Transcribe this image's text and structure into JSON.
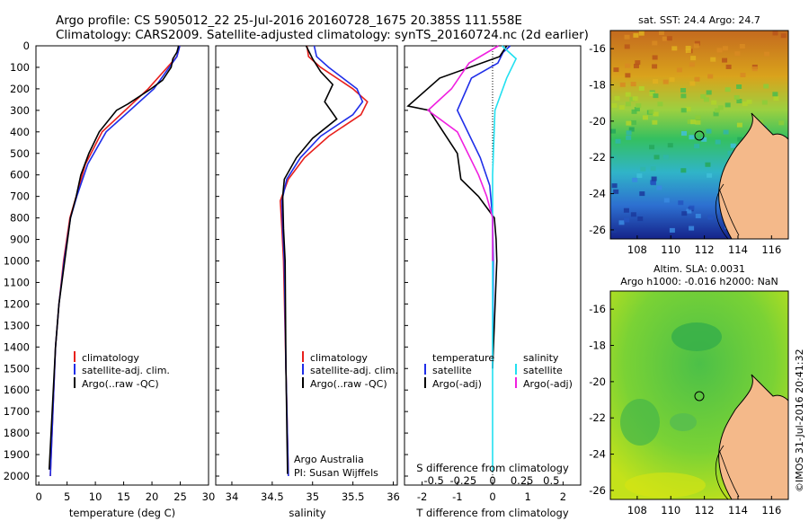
{
  "header": {
    "line1": "Argo profile: CS 5905012_22 25-Jul-2016 20160728_1675 20.385S 111.558E",
    "line2": "Climatology: CARS2009. Satellite-adjusted climatology: synTS_20160724.nc (2d earlier)"
  },
  "colors": {
    "climatology": "#e8201c",
    "satellite": "#1f2ee8",
    "argo": "#000000",
    "salinity_satellite": "#22e0f0",
    "salinity_argo": "#f020e0"
  },
  "depth_ticks": [
    "0",
    "100",
    "200",
    "300",
    "400",
    "500",
    "600",
    "700",
    "800",
    "900",
    "1000",
    "1100",
    "1200",
    "1300",
    "1400",
    "1500",
    "1600",
    "1700",
    "1800",
    "1900",
    "2000"
  ],
  "panels": {
    "temperature": {
      "xlabel": "temperature (deg C)",
      "ticks": [
        "0",
        "5",
        "10",
        "15",
        "20",
        "25",
        "30"
      ],
      "legend": [
        "climatology",
        "satellite-adj. clim.",
        "Argo(..raw -QC)"
      ]
    },
    "salinity": {
      "xlabel": "salinity",
      "ticks": [
        "34",
        "34.5",
        "35",
        "35.5",
        "36"
      ],
      "legend": [
        "climatology",
        "satellite-adj. clim.",
        "Argo(..raw -QC)"
      ],
      "note1": "Argo Australia",
      "note2": "PI: Susan Wijffels"
    },
    "difference": {
      "xlabel": "T difference from climatology",
      "toplabel": "S difference from climatology",
      "ticks": [
        "-2",
        "-1",
        "0",
        "1",
        "2"
      ],
      "sticks": [
        "-0.5",
        "-0.25",
        "0",
        "0.25",
        "0.5"
      ],
      "legend_t_title": "temperature",
      "legend_t": [
        "satellite",
        "Argo(-adj)"
      ],
      "legend_s_title": "salinity",
      "legend_s": [
        "satellite",
        "Argo(-adj)"
      ]
    }
  },
  "maps": {
    "sst": {
      "title": "sat. SST: 24.4  Argo: 24.7"
    },
    "sla": {
      "title1": "Altim. SLA: 0.0031",
      "title2": "Argo h1000: -0.016 h2000: NaN"
    },
    "yticks": [
      "-16",
      "-18",
      "-20",
      "-22",
      "-24",
      "-26"
    ],
    "xticks": [
      "108",
      "110",
      "112",
      "114",
      "116"
    ]
  },
  "credit": "©IMOS 31-Jul-2016 20:41:32",
  "chart_data": [
    {
      "type": "line",
      "title": "",
      "xlabel": "temperature (deg C)",
      "ylabel": "",
      "xlim": [
        0,
        30
      ],
      "ylim": [
        2000,
        0
      ],
      "series": [
        {
          "name": "climatology",
          "x": [
            25,
            24.5,
            19.5,
            11.5,
            8.6,
            7.0,
            5.9,
            4.8,
            4.0,
            3.4,
            2.5
          ],
          "y": [
            0,
            50,
            200,
            400,
            550,
            700,
            800,
            1000,
            1200,
            1400,
            2000
          ]
        },
        {
          "name": "satellite-adj. clim.",
          "x": [
            25,
            24.5,
            20.5,
            12.2,
            9.0,
            7.1,
            6.0,
            4.9,
            4.0,
            3.4,
            2.5
          ],
          "y": [
            0,
            50,
            200,
            400,
            550,
            700,
            800,
            1000,
            1200,
            1400,
            2000
          ]
        },
        {
          "name": "Argo(..raw -QC)",
          "x": [
            24.8,
            24.5,
            23.8,
            23.5,
            22.0,
            20.0,
            16.0,
            14.0,
            11.0,
            9.2,
            7.8,
            7.0,
            6.0,
            5.0,
            4.0,
            3.4,
            2.3
          ],
          "y": [
            0,
            30,
            60,
            100,
            160,
            200,
            270,
            300,
            400,
            500,
            600,
            700,
            800,
            1000,
            1200,
            1400,
            1970
          ]
        }
      ]
    },
    {
      "type": "line",
      "title": "",
      "xlabel": "salinity",
      "ylabel": "",
      "xlim": [
        33.8,
        36.05
      ],
      "ylim": [
        2000,
        0
      ],
      "series": [
        {
          "name": "climatology",
          "x": [
            34.93,
            34.95,
            35.1,
            35.5,
            35.68,
            35.6,
            35.2,
            34.9,
            34.7,
            34.6,
            34.62,
            34.64,
            34.67,
            34.7
          ],
          "y": [
            0,
            50,
            100,
            200,
            260,
            320,
            420,
            520,
            620,
            720,
            850,
            1000,
            1500,
            2000
          ]
        },
        {
          "name": "satellite-adj. clim.",
          "x": [
            35.02,
            35.05,
            35.2,
            35.55,
            35.62,
            35.5,
            35.1,
            34.85,
            34.68,
            34.62,
            34.63,
            34.65,
            34.67,
            34.7
          ],
          "y": [
            0,
            50,
            100,
            200,
            260,
            320,
            420,
            520,
            620,
            720,
            850,
            1000,
            1500,
            2000
          ]
        },
        {
          "name": "Argo(..raw -QC)",
          "x": [
            34.92,
            35.0,
            35.1,
            35.25,
            35.15,
            35.3,
            35.0,
            34.8,
            34.65,
            34.63,
            34.64,
            34.66,
            34.67,
            34.69
          ],
          "y": [
            0,
            60,
            120,
            180,
            260,
            340,
            430,
            520,
            620,
            700,
            850,
            1000,
            1500,
            1990
          ]
        }
      ]
    },
    {
      "type": "line",
      "title": "",
      "xlabel": "T difference from climatology",
      "ylabel": "",
      "xlim": [
        -2.5,
        2.5
      ],
      "ylim": [
        2000,
        0
      ],
      "series": [
        {
          "name": "satellite",
          "x": [
            0.5,
            0.3,
            0.15,
            -0.6,
            -1.0,
            -0.35,
            -0.08,
            0.0,
            0.02,
            0
          ],
          "y": [
            0,
            30,
            80,
            150,
            300,
            520,
            650,
            800,
            1000,
            1500
          ]
        },
        {
          "name": "Argo(-adj)",
          "x": [
            0.4,
            0.2,
            -1.5,
            -2.4,
            -1.8,
            -1.0,
            -0.9,
            -0.4,
            0.05,
            0.1,
            0.12,
            0
          ],
          "y": [
            0,
            50,
            150,
            280,
            300,
            500,
            620,
            700,
            800,
            900,
            1000,
            1500
          ]
        }
      ]
    },
    {
      "type": "line",
      "title": "",
      "xlabel": "S difference from climatology",
      "ylabel": "",
      "xlim": [
        -0.75,
        0.75
      ],
      "ylim": [
        2000,
        0
      ],
      "series": [
        {
          "name": "satellite",
          "x": [
            0.08,
            0.2,
            0.12,
            0.02,
            0.0,
            0.0,
            0.0,
            0.0
          ],
          "y": [
            0,
            60,
            150,
            300,
            600,
            900,
            1500,
            1980
          ]
        },
        {
          "name": "Argo(-adj)",
          "x": [
            0.05,
            -0.2,
            -0.35,
            -0.55,
            -0.3,
            -0.12,
            -0.05,
            0.0,
            0.0
          ],
          "y": [
            0,
            80,
            200,
            300,
            400,
            600,
            700,
            800,
            1000
          ]
        }
      ]
    }
  ]
}
